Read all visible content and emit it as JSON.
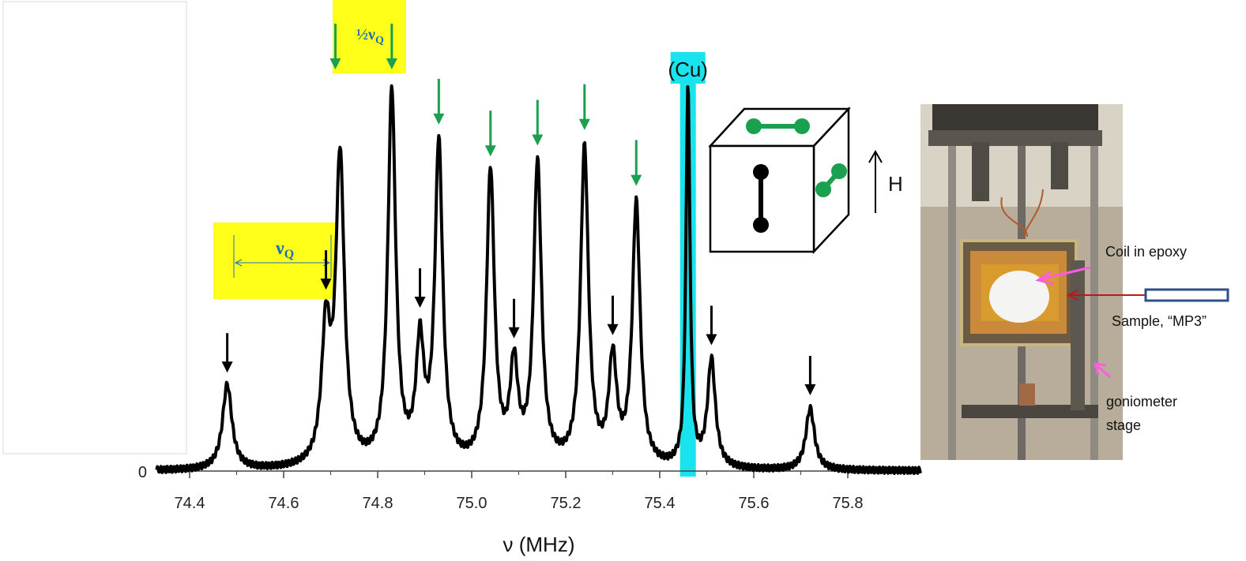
{
  "chart_data": {
    "type": "line",
    "xlabel": "ν (MHz)",
    "ylabel": "",
    "xlim": [
      74.33,
      75.95
    ],
    "ylim": [
      0,
      1.0
    ],
    "xticks": [
      "74.4",
      "74.6",
      "74.8",
      "75.0",
      "75.2",
      "75.4",
      "75.6",
      "75.8"
    ],
    "xtick_values": [
      74.4,
      74.6,
      74.8,
      75.0,
      75.2,
      75.4,
      75.6,
      75.8
    ],
    "yticks": [
      "0"
    ],
    "ytick_values": [
      0
    ],
    "grid": false,
    "series": [
      {
        "color": "#000000",
        "peaks": [
          {
            "x": 74.48,
            "y": 0.22,
            "w": 0.012
          },
          {
            "x": 74.69,
            "y": 0.34,
            "w": 0.011
          },
          {
            "x": 74.72,
            "y": 0.79,
            "w": 0.011
          },
          {
            "x": 74.83,
            "y": 0.97,
            "w": 0.01
          },
          {
            "x": 74.89,
            "y": 0.3,
            "w": 0.01
          },
          {
            "x": 74.93,
            "y": 0.83,
            "w": 0.01
          },
          {
            "x": 75.04,
            "y": 0.76,
            "w": 0.01
          },
          {
            "x": 75.09,
            "y": 0.25,
            "w": 0.01
          },
          {
            "x": 75.14,
            "y": 0.78,
            "w": 0.01
          },
          {
            "x": 75.24,
            "y": 0.82,
            "w": 0.01
          },
          {
            "x": 75.3,
            "y": 0.27,
            "w": 0.01
          },
          {
            "x": 75.35,
            "y": 0.68,
            "w": 0.01
          },
          {
            "x": 75.46,
            "y": 0.99,
            "w": 0.005
          },
          {
            "x": 75.51,
            "y": 0.28,
            "w": 0.01
          },
          {
            "x": 75.72,
            "y": 0.16,
            "w": 0.011
          }
        ]
      }
    ],
    "annotations": {
      "cu_label": "(Cu)",
      "cu_line_x": 75.46,
      "cu_color": "#19e3ec",
      "nuq_label": "ν",
      "nuq_sub": "Q",
      "half_nuq_label": "½ν",
      "half_nuq_sub": "Q",
      "highlight_color": "#ffff1a",
      "black_arrow_x": [
        74.48,
        74.69,
        74.89,
        75.09,
        75.3,
        75.51,
        75.72
      ],
      "green_arrow_x": [
        74.71,
        74.83,
        74.93,
        75.04,
        75.14,
        75.24,
        75.35
      ],
      "green_color": "#1aa04e",
      "field_label": "H"
    }
  },
  "photo": {
    "coil_label": "Coil in epoxy",
    "sample_label": "Sample, “MP3”",
    "stage_label_1": "goniometer",
    "stage_label_2": "stage",
    "arrow_color": "#ff5ce0",
    "sample_arrow_color": "#c0161c"
  }
}
